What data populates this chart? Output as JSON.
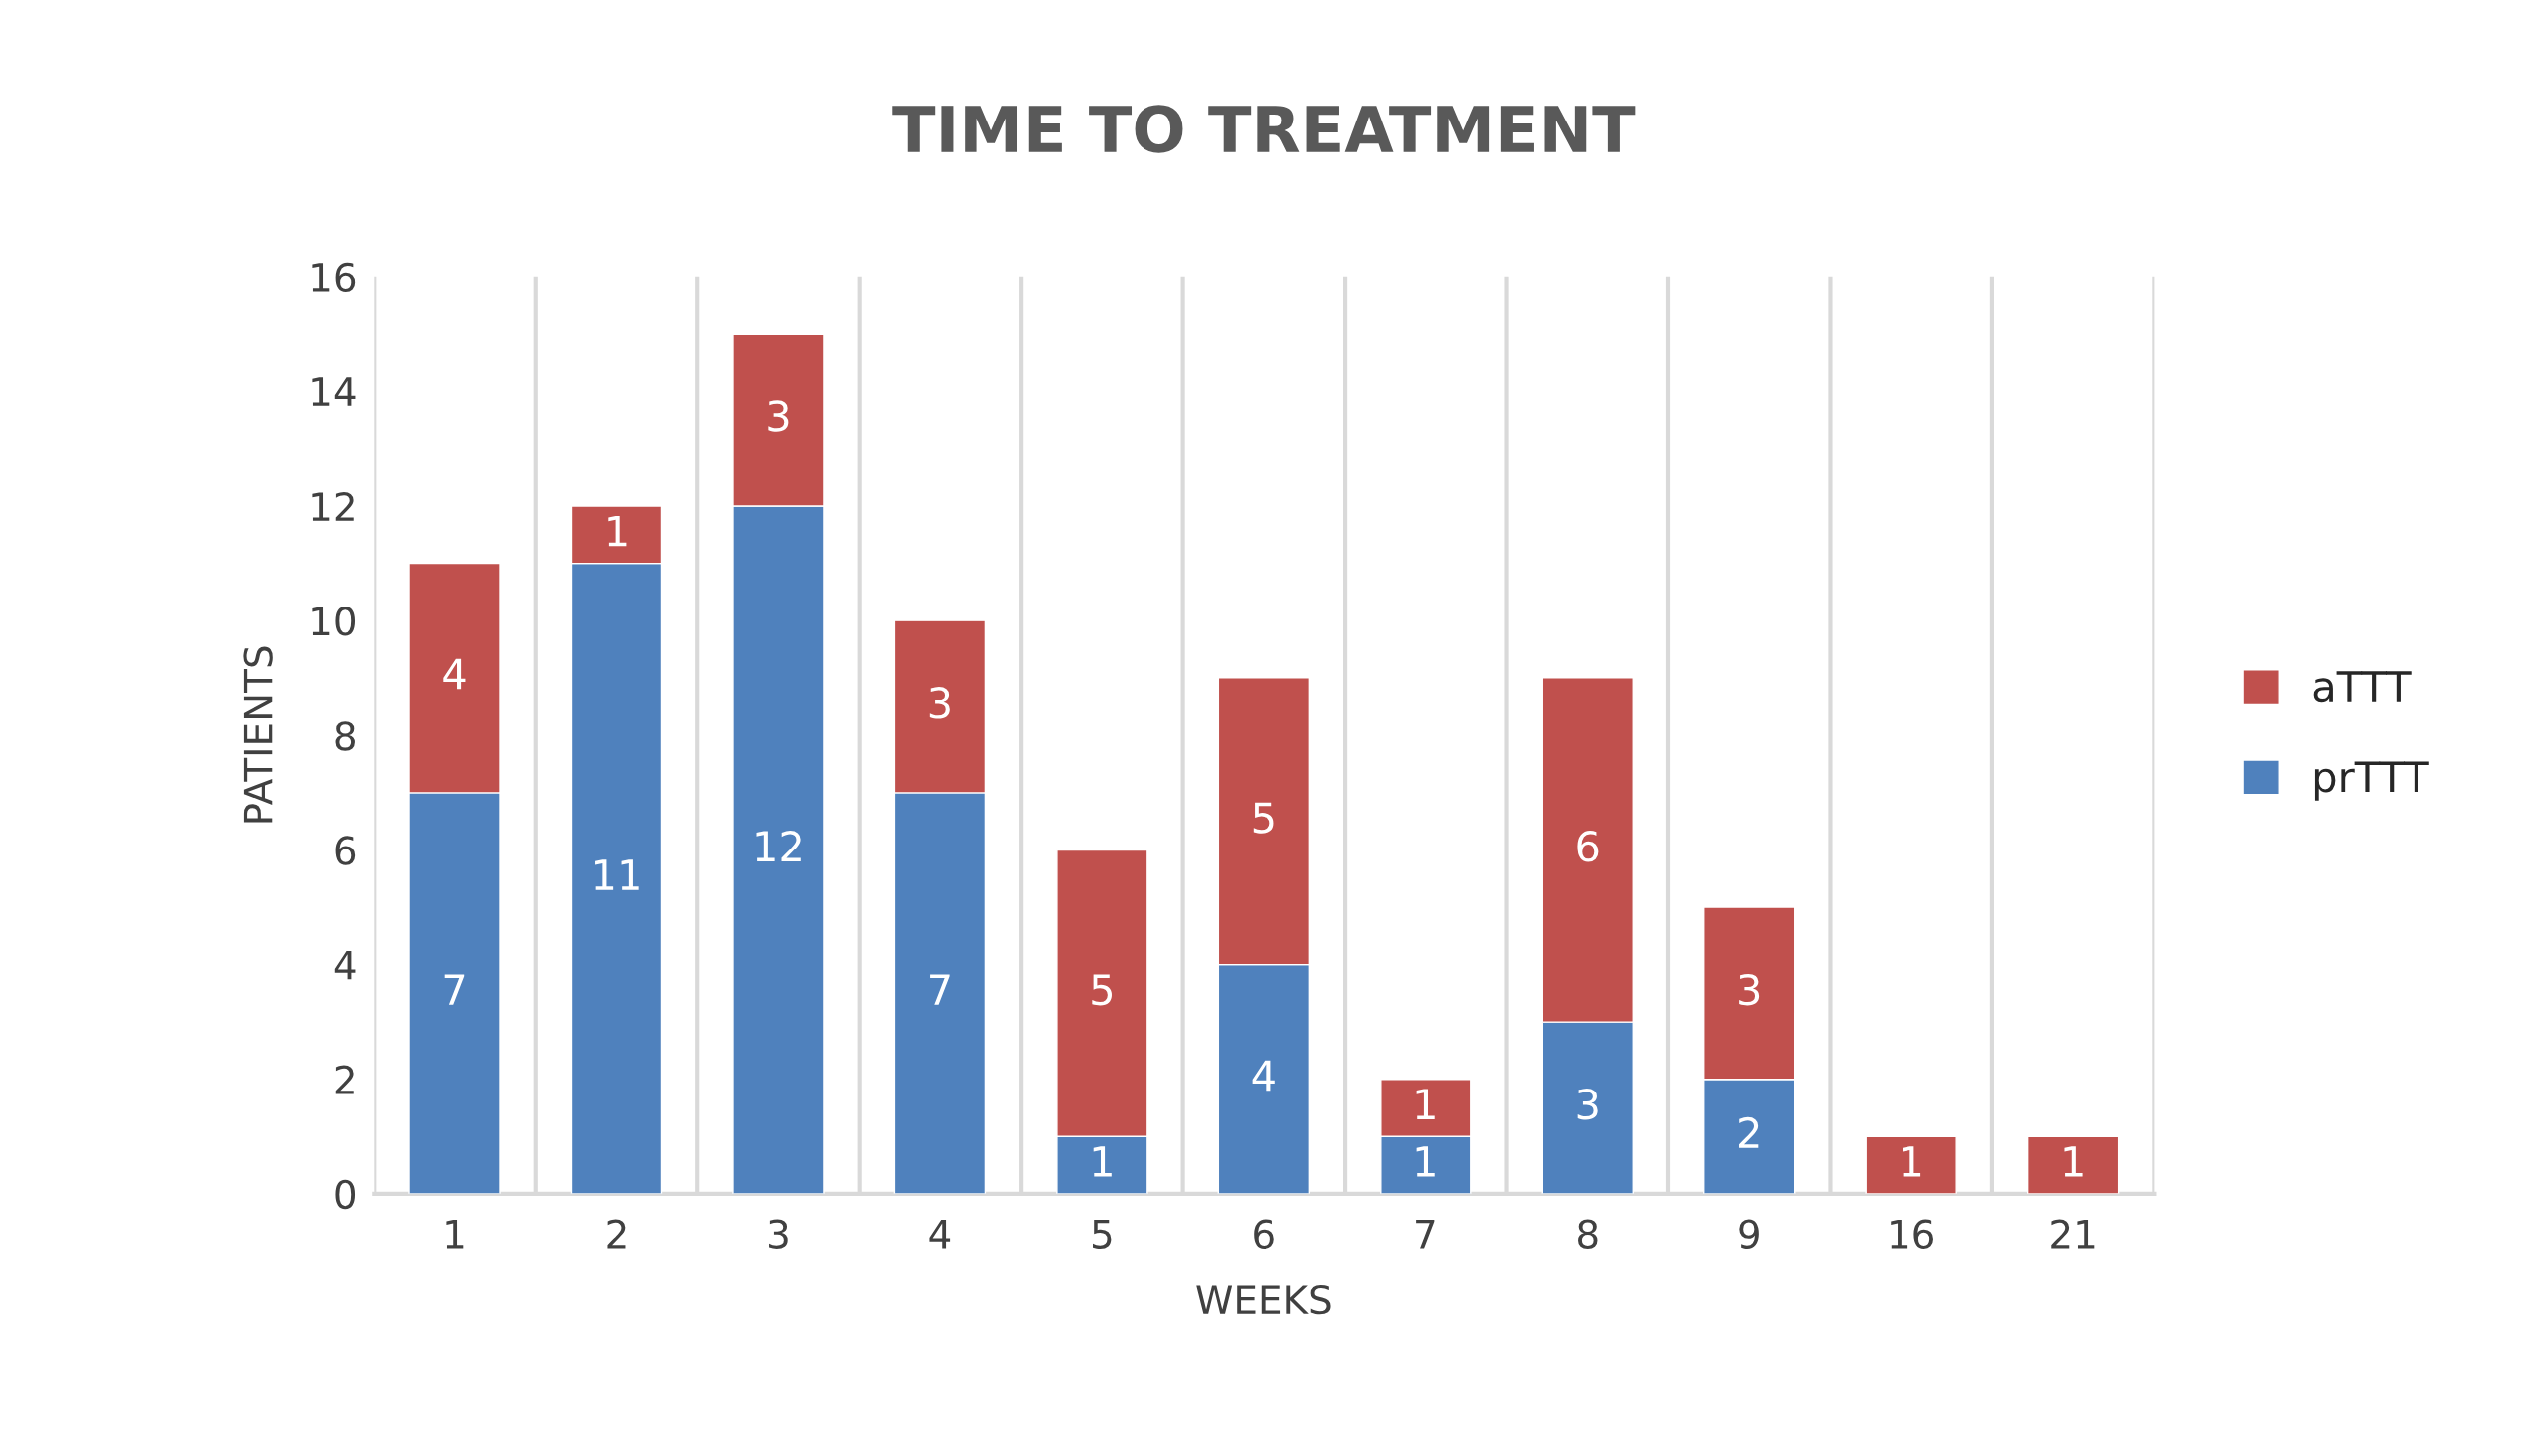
{
  "chart_data": {
    "type": "bar",
    "title": "TIME TO TREATMENT",
    "xlabel": "WEEKS",
    "ylabel": "PATIENTS",
    "categories": [
      "1",
      "2",
      "3",
      "4",
      "5",
      "6",
      "7",
      "8",
      "9",
      "16",
      "21"
    ],
    "stacked": true,
    "series": [
      {
        "name": "prTTT",
        "color": "#4f81bd",
        "values": [
          7,
          11,
          12,
          7,
          1,
          4,
          1,
          3,
          2,
          0,
          0
        ],
        "value_labels": [
          "7",
          "11",
          "12",
          "7",
          "1",
          "4",
          "1",
          "3",
          "2",
          null,
          null
        ]
      },
      {
        "name": "aTTT",
        "color": "#c0504d",
        "values": [
          4,
          1,
          3,
          3,
          5,
          5,
          1,
          6,
          3,
          1,
          1
        ],
        "value_labels": [
          "4",
          "1",
          "3",
          "3",
          "5",
          "5",
          "1",
          "6",
          "3",
          "1",
          "1"
        ]
      }
    ],
    "ylim": [
      0,
      16
    ],
    "yticks": [
      0,
      2,
      4,
      6,
      8,
      10,
      12,
      14,
      16
    ],
    "grid": "x",
    "legend": "right"
  }
}
